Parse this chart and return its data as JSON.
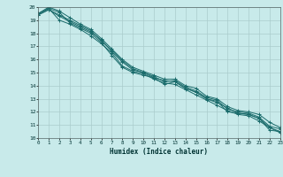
{
  "xlabel": "Humidex (Indice chaleur)",
  "xlim": [
    0,
    23
  ],
  "ylim": [
    10,
    20
  ],
  "xticks": [
    0,
    1,
    2,
    3,
    4,
    5,
    6,
    7,
    8,
    9,
    10,
    11,
    12,
    13,
    14,
    15,
    16,
    17,
    18,
    19,
    20,
    21,
    22,
    23
  ],
  "yticks": [
    10,
    11,
    12,
    13,
    14,
    15,
    16,
    17,
    18,
    19,
    20
  ],
  "background_color": "#c8eaea",
  "grid_color": "#aacccc",
  "line_color": "#1a6b6b",
  "lines": [
    {
      "x": [
        0,
        1,
        2,
        3,
        4,
        5,
        6,
        7,
        8,
        9,
        10,
        11,
        12,
        13,
        14,
        15,
        16,
        17,
        18,
        19,
        20,
        21,
        22,
        23
      ],
      "y": [
        19.5,
        19.9,
        19.6,
        18.8,
        18.4,
        18.0,
        17.3,
        16.3,
        15.4,
        15.0,
        14.8,
        14.6,
        14.1,
        14.3,
        13.8,
        13.5,
        13.0,
        12.8,
        12.0,
        11.9,
        11.8,
        11.5,
        10.6,
        10.5
      ]
    },
    {
      "x": [
        0,
        1,
        2,
        3,
        4,
        5,
        6,
        7,
        8,
        9,
        10,
        11,
        12,
        13,
        14,
        15,
        16,
        17,
        18,
        19,
        20,
        21,
        22,
        23
      ],
      "y": [
        19.5,
        19.9,
        19.0,
        18.7,
        18.3,
        17.8,
        17.2,
        16.5,
        15.5,
        15.1,
        14.9,
        14.5,
        14.2,
        14.1,
        13.7,
        13.3,
        12.9,
        12.5,
        12.1,
        11.8,
        11.7,
        11.3,
        10.8,
        10.4
      ]
    },
    {
      "x": [
        0,
        1,
        2,
        3,
        4,
        5,
        6,
        7,
        8,
        9,
        10,
        11,
        12,
        13,
        14,
        15,
        16,
        17,
        18,
        19,
        20,
        21,
        22,
        23
      ],
      "y": [
        19.4,
        19.8,
        19.3,
        18.9,
        18.5,
        18.1,
        17.5,
        16.6,
        15.8,
        15.2,
        15.0,
        14.7,
        14.3,
        14.4,
        13.9,
        13.6,
        13.1,
        12.9,
        12.2,
        12.0,
        11.9,
        11.6,
        10.9,
        10.7
      ]
    },
    {
      "x": [
        0,
        1,
        2,
        3,
        4,
        5,
        6,
        7,
        8,
        9,
        10,
        11,
        12,
        13,
        14,
        15,
        16,
        17,
        18,
        19,
        20,
        21,
        22,
        23
      ],
      "y": [
        19.5,
        20.0,
        19.7,
        19.2,
        18.7,
        18.3,
        17.6,
        16.8,
        16.0,
        15.4,
        15.1,
        14.8,
        14.5,
        14.5,
        14.0,
        13.8,
        13.2,
        13.0,
        12.4,
        12.1,
        12.0,
        11.8,
        11.2,
        10.8
      ]
    },
    {
      "x": [
        0,
        1,
        2,
        3,
        4,
        5,
        6,
        7,
        8,
        9,
        10,
        11,
        12,
        13,
        14,
        15,
        16,
        17,
        18,
        19,
        20,
        21,
        22,
        23
      ],
      "y": [
        19.4,
        19.8,
        19.4,
        19.0,
        18.6,
        18.2,
        17.4,
        16.7,
        15.9,
        15.3,
        15.0,
        14.6,
        14.4,
        14.3,
        13.8,
        13.5,
        13.0,
        12.7,
        12.3,
        11.9,
        11.8,
        11.5,
        10.8,
        10.5
      ]
    }
  ]
}
